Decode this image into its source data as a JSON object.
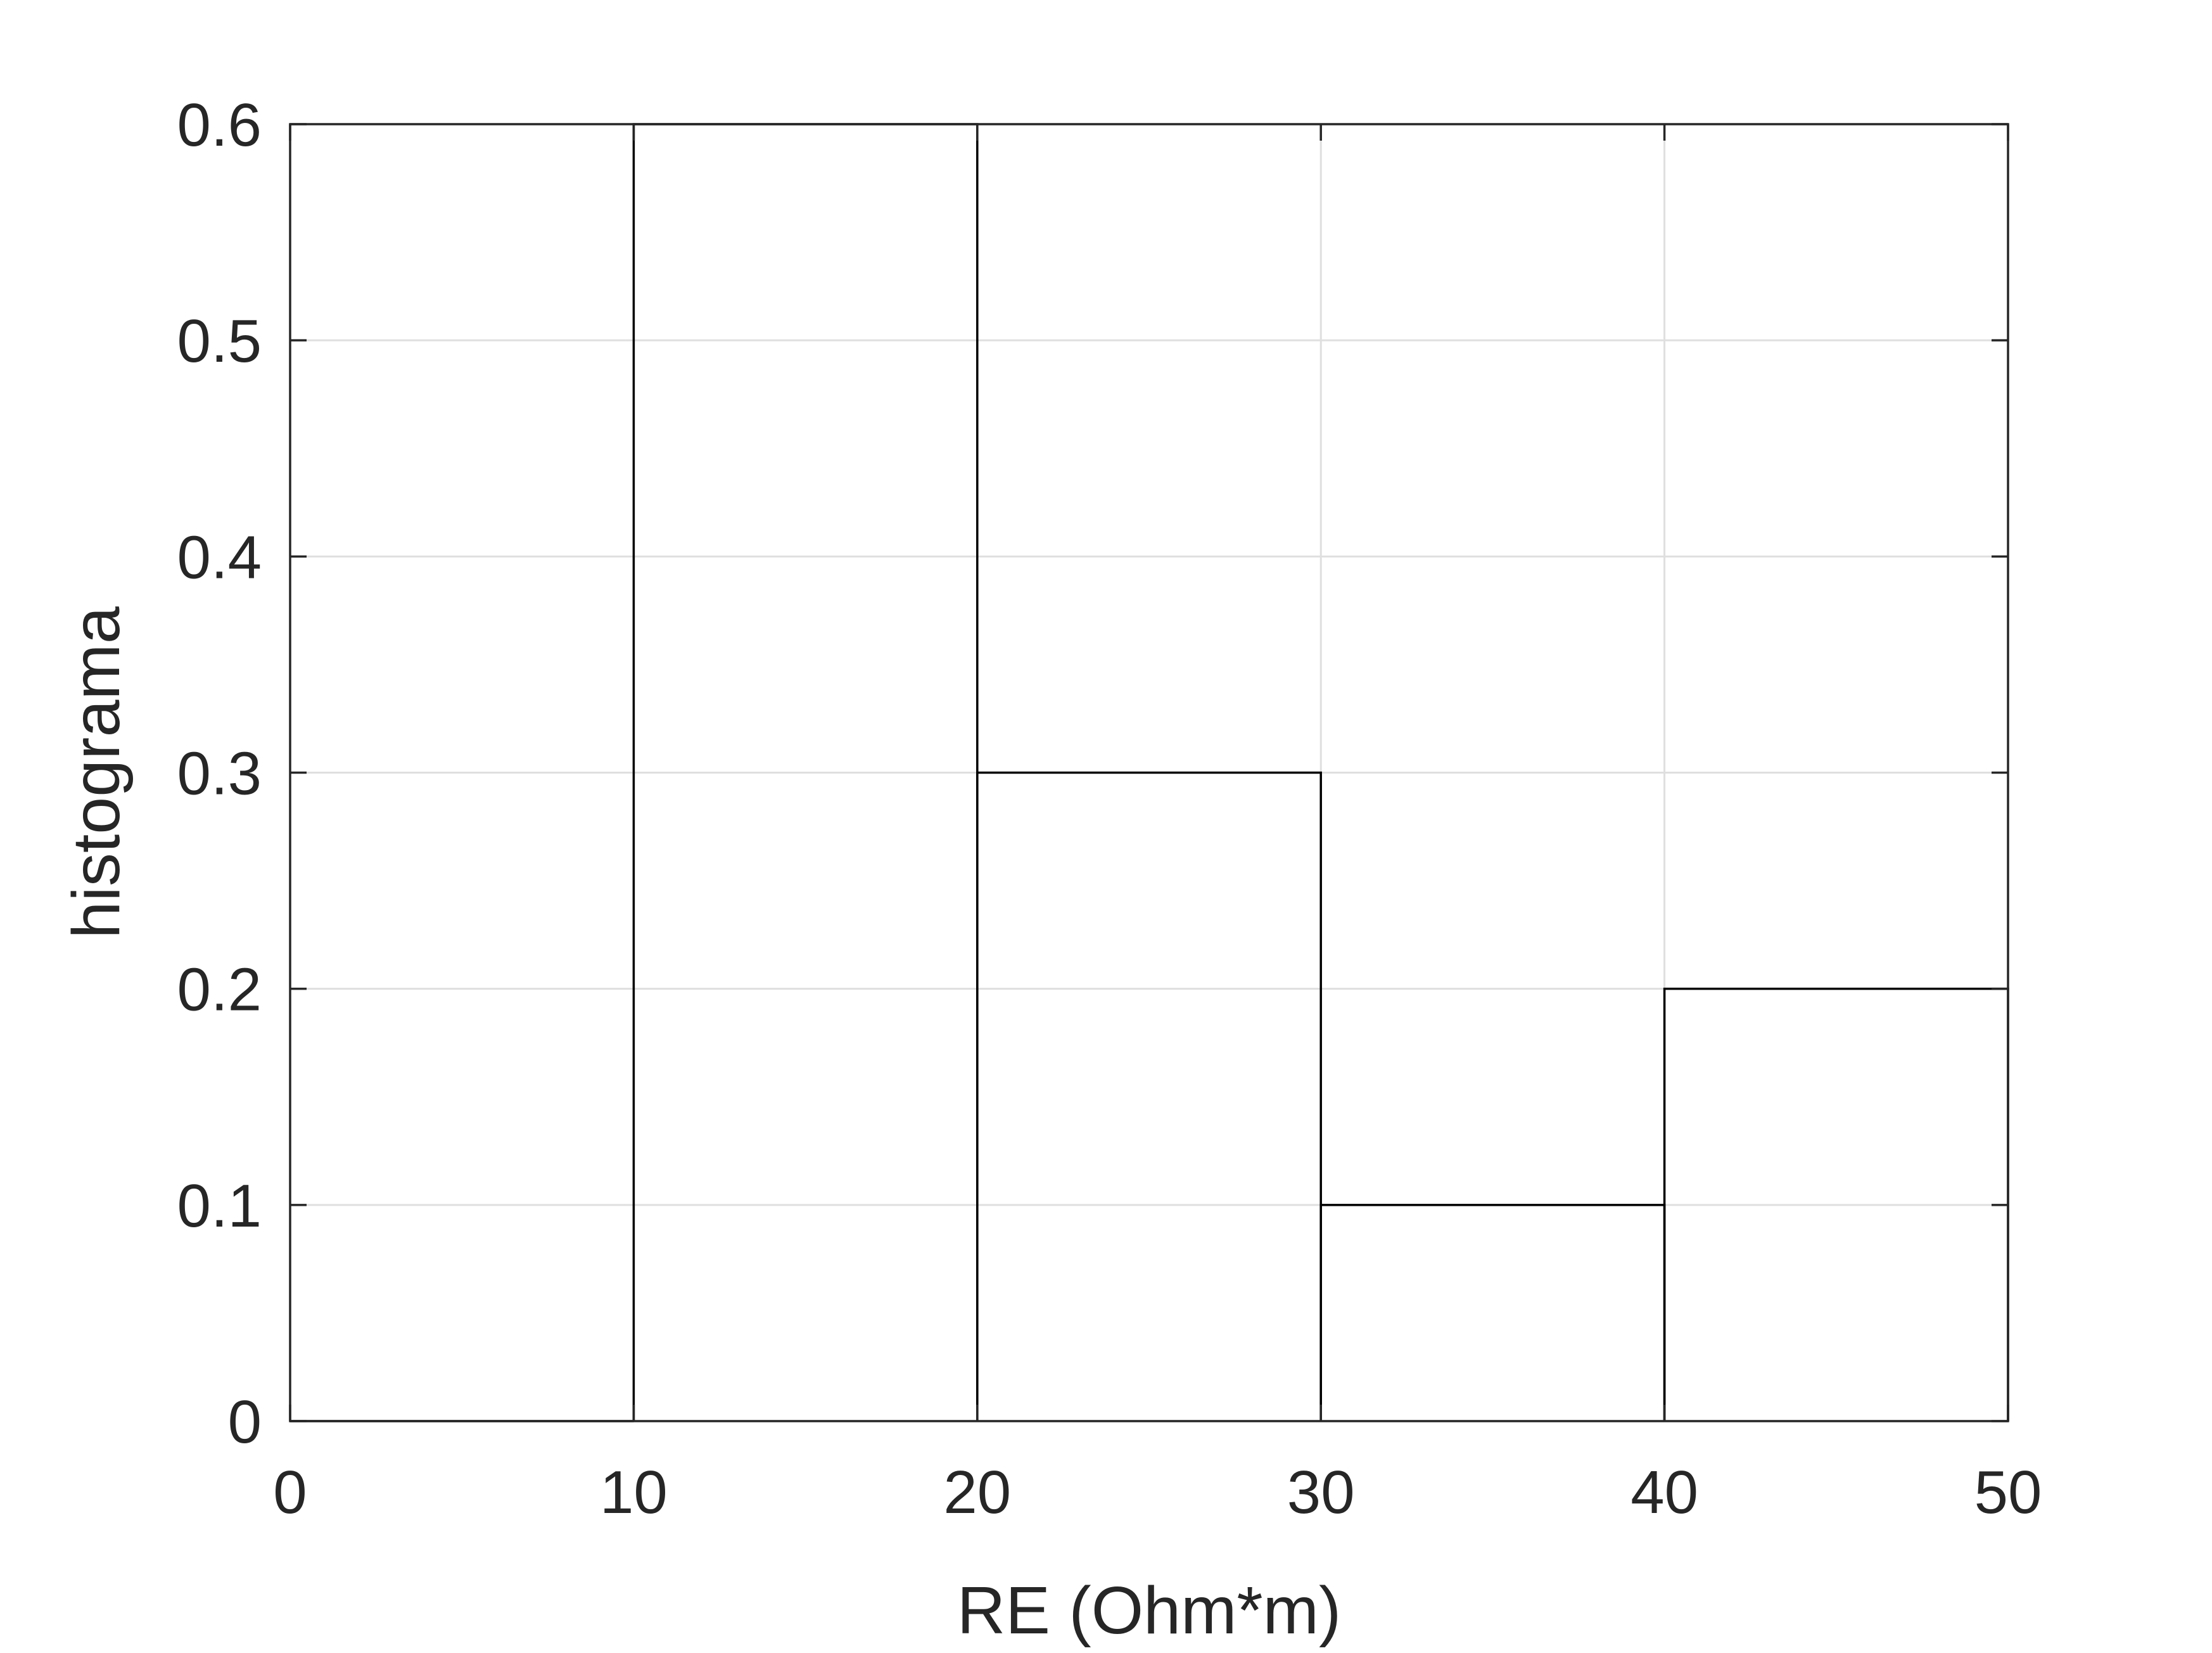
{
  "chart_data": {
    "type": "bar",
    "style": "stairs-histogram",
    "bin_edges": [
      0,
      10,
      20,
      30,
      40,
      50
    ],
    "values": [
      0,
      0.6,
      0.3,
      0.1,
      0.2
    ],
    "xlabel": "RE (Ohm*m)",
    "ylabel": "histograma",
    "xlim": [
      0,
      50
    ],
    "ylim": [
      0,
      0.6
    ],
    "xticks": [
      "0",
      "10",
      "20",
      "30",
      "40",
      "50"
    ],
    "yticks": [
      "0",
      "0.1",
      "0.2",
      "0.3",
      "0.4",
      "0.5",
      "0.6"
    ],
    "grid": true,
    "line_color": "#000000",
    "grid_color": "#dfdfdf",
    "axis_color": "#262626"
  }
}
